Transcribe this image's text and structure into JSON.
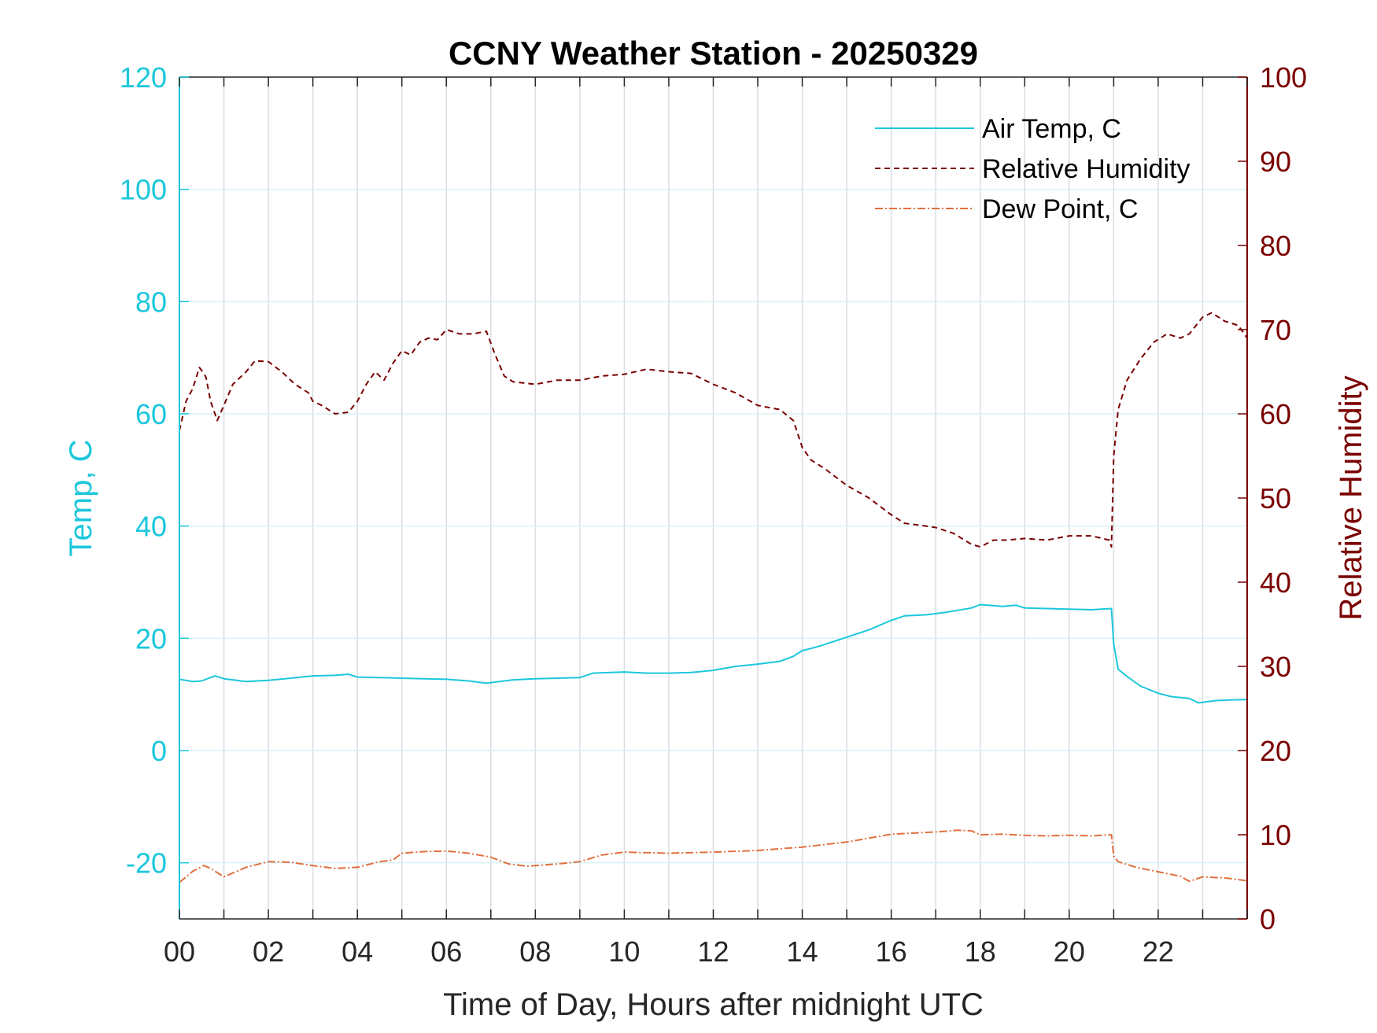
{
  "chart_data": {
    "type": "line",
    "title": "CCNY Weather Station - 20250329",
    "xlabel": "Time of Day, Hours after midnight UTC",
    "ylabel_left": "Temp, C",
    "ylabel_right": "Relative Humidity",
    "xlim": [
      0,
      24
    ],
    "ylim_left": [
      -30,
      120
    ],
    "ylim_right": [
      0,
      100
    ],
    "x_ticks": [
      0,
      2,
      4,
      6,
      8,
      10,
      12,
      14,
      16,
      18,
      20,
      22
    ],
    "x_tick_labels": [
      "00",
      "02",
      "04",
      "06",
      "08",
      "10",
      "12",
      "14",
      "16",
      "18",
      "20",
      "22"
    ],
    "y_left_ticks": [
      -20,
      0,
      20,
      40,
      60,
      80,
      100,
      120
    ],
    "y_left_tick_labels": [
      "-20",
      "0",
      "20",
      "40",
      "60",
      "80",
      "100",
      "120"
    ],
    "y_right_ticks": [
      0,
      10,
      20,
      30,
      40,
      50,
      60,
      70,
      80,
      90,
      100
    ],
    "y_right_tick_labels": [
      "0",
      "10",
      "20",
      "30",
      "40",
      "50",
      "60",
      "70",
      "80",
      "90",
      "100"
    ],
    "grid": true,
    "legend_position": "top-right",
    "colors": {
      "left_axis": "#1cc7dc",
      "right_axis": "#7b0000",
      "dew_point": "#e0703e",
      "grid": "#d9dde2"
    },
    "series": [
      {
        "name": "Air Temp, C",
        "axis": "left",
        "style": "solid",
        "color": "#1cc7dc",
        "x": [
          0,
          0.3,
          0.5,
          0.8,
          1.0,
          1.5,
          2.0,
          2.5,
          3.0,
          3.5,
          3.8,
          4.0,
          4.5,
          5.0,
          5.5,
          6.0,
          6.5,
          6.9,
          7.5,
          8.0,
          8.5,
          9.0,
          9.3,
          10.0,
          10.5,
          11.0,
          11.5,
          12.0,
          12.5,
          13.0,
          13.5,
          13.8,
          14.0,
          14.3,
          14.5,
          15.0,
          15.5,
          16.0,
          16.3,
          16.8,
          17.2,
          17.5,
          17.8,
          18.0,
          18.5,
          18.8,
          19.0,
          19.5,
          20.0,
          20.5,
          20.95,
          21.0,
          21.1,
          21.3,
          21.6,
          22.0,
          22.3,
          22.7,
          22.9,
          23.3,
          23.6,
          24.0
        ],
        "y": [
          12.7,
          12.3,
          12.4,
          13.3,
          12.8,
          12.3,
          12.5,
          12.9,
          13.3,
          13.4,
          13.6,
          13.1,
          13.0,
          12.9,
          12.8,
          12.7,
          12.4,
          12.0,
          12.6,
          12.8,
          12.9,
          13.0,
          13.8,
          14.0,
          13.8,
          13.8,
          13.9,
          14.3,
          15.0,
          15.4,
          15.9,
          16.8,
          17.8,
          18.4,
          18.9,
          20.2,
          21.5,
          23.2,
          24.0,
          24.2,
          24.6,
          25.0,
          25.4,
          26.0,
          25.7,
          25.9,
          25.4,
          25.3,
          25.2,
          25.1,
          25.3,
          19.0,
          14.5,
          13.2,
          11.5,
          10.2,
          9.6,
          9.3,
          8.5,
          8.9,
          9.0,
          9.1
        ]
      },
      {
        "name": "Relative Humidity",
        "axis": "right",
        "style": "dashed",
        "color": "#7b0000",
        "x": [
          0,
          0.15,
          0.3,
          0.45,
          0.55,
          0.6,
          0.7,
          0.8,
          0.85,
          1.0,
          1.2,
          1.5,
          1.7,
          2.0,
          2.3,
          2.6,
          2.9,
          3.0,
          3.2,
          3.5,
          3.8,
          4.0,
          4.2,
          4.4,
          4.6,
          4.8,
          5.0,
          5.2,
          5.4,
          5.6,
          5.8,
          6.0,
          6.3,
          6.6,
          6.9,
          7.1,
          7.3,
          7.5,
          8.0,
          8.5,
          9.0,
          9.5,
          10.0,
          10.5,
          11.0,
          11.5,
          12.0,
          12.5,
          13.0,
          13.5,
          13.8,
          14.0,
          14.2,
          14.5,
          15.0,
          15.5,
          16.0,
          16.3,
          16.6,
          17.0,
          17.4,
          17.8,
          18.0,
          18.3,
          18.6,
          19.0,
          19.5,
          20.0,
          20.5,
          20.9,
          20.95,
          21.0,
          21.1,
          21.3,
          21.6,
          21.9,
          22.2,
          22.5,
          22.7,
          23.0,
          23.2,
          23.5,
          23.8,
          24.0
        ],
        "y": [
          58.0,
          61.5,
          63.0,
          65.5,
          64.8,
          64.3,
          61.5,
          60.0,
          59.2,
          61.0,
          63.5,
          65.0,
          66.3,
          66.2,
          65.0,
          63.5,
          62.5,
          61.5,
          61.0,
          60.0,
          60.2,
          61.5,
          63.5,
          65.0,
          64.0,
          66.0,
          67.5,
          67.0,
          68.5,
          69.0,
          68.8,
          70.0,
          69.5,
          69.5,
          69.8,
          67.0,
          64.5,
          63.8,
          63.5,
          64.0,
          64.0,
          64.5,
          64.7,
          65.3,
          65.0,
          64.8,
          63.5,
          62.5,
          61.0,
          60.5,
          59.2,
          56.0,
          54.5,
          53.5,
          51.5,
          50.0,
          48.0,
          47.0,
          46.8,
          46.5,
          45.8,
          44.5,
          44.2,
          45.0,
          45.0,
          45.2,
          45.0,
          45.5,
          45.5,
          45.0,
          44.2,
          55.0,
          60.5,
          64.0,
          66.5,
          68.5,
          69.5,
          69.0,
          69.5,
          71.5,
          72.0,
          71.0,
          70.5,
          69.0
        ]
      },
      {
        "name": "Dew Point, C",
        "axis": "left",
        "style": "dashdot",
        "color": "#e0703e",
        "x": [
          0,
          0.3,
          0.55,
          0.7,
          0.9,
          1.0,
          1.5,
          2.0,
          2.5,
          3.0,
          3.5,
          4.0,
          4.5,
          4.8,
          5.0,
          5.5,
          6.0,
          6.5,
          7.0,
          7.4,
          7.8,
          8.0,
          8.5,
          9.0,
          9.5,
          10.0,
          11.0,
          12.0,
          13.0,
          14.0,
          15.0,
          15.5,
          16.0,
          16.5,
          17.0,
          17.5,
          17.8,
          18.0,
          18.5,
          19.0,
          19.5,
          20.0,
          20.5,
          20.95,
          21.0,
          21.1,
          21.5,
          22.0,
          22.5,
          22.7,
          23.0,
          23.5,
          24.0
        ],
        "y": [
          -23.5,
          -21.5,
          -20.5,
          -21.0,
          -22.0,
          -22.5,
          -20.8,
          -19.8,
          -19.9,
          -20.5,
          -21.0,
          -20.8,
          -19.8,
          -19.5,
          -18.3,
          -18.0,
          -17.9,
          -18.3,
          -19.0,
          -20.2,
          -20.6,
          -20.5,
          -20.2,
          -19.8,
          -18.6,
          -18.1,
          -18.3,
          -18.1,
          -17.8,
          -17.2,
          -16.3,
          -15.6,
          -14.9,
          -14.7,
          -14.5,
          -14.2,
          -14.3,
          -15.0,
          -14.9,
          -15.1,
          -15.2,
          -15.1,
          -15.2,
          -15.0,
          -18.8,
          -19.8,
          -20.8,
          -21.6,
          -22.4,
          -23.3,
          -22.5,
          -22.7,
          -23.2
        ]
      }
    ]
  }
}
